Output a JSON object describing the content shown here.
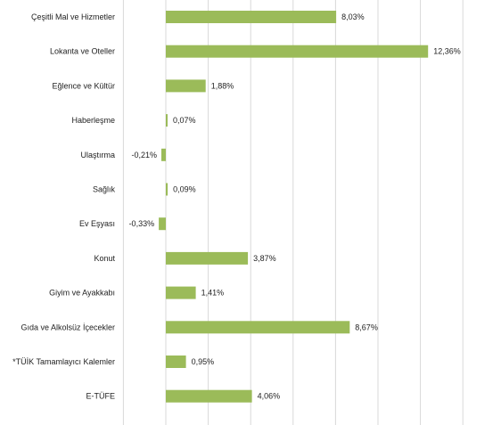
{
  "chart_data": {
    "type": "bar",
    "orientation": "horizontal",
    "title": "",
    "xlabel": "",
    "ylabel": "",
    "grid": true,
    "xlim": [
      -1,
      14
    ],
    "bar_color": "#9bbb59",
    "categories": [
      "Çeşitli Mal ve Hizmetler",
      "Lokanta ve Oteller",
      "Eğlence ve Kültür",
      "Haberleşme",
      "Ulaştırma",
      "Sağlık",
      "Ev Eşyası",
      "Konut",
      "Giyim ve Ayakkabı",
      "Gıda ve Alkolsüz İçecekler",
      "*TÜİK Tamamlayıcı Kalemler",
      "E-TÜFE"
    ],
    "values": [
      8.03,
      12.36,
      1.88,
      0.07,
      -0.21,
      0.09,
      -0.33,
      3.87,
      1.41,
      8.67,
      0.95,
      4.06
    ],
    "value_labels": [
      "8,03%",
      "12,36%",
      "1,88%",
      "0,07%",
      "-0,21%",
      "0,09%",
      "-0,33%",
      "3,87%",
      "1,41%",
      "8,67%",
      "0,95%",
      "4,06%"
    ]
  }
}
